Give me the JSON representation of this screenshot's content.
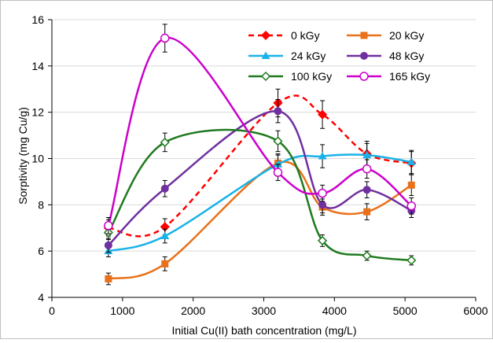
{
  "chart_data": {
    "type": "line",
    "title": "",
    "xlabel": "Initial Cu(II) bath concentration (mg/L)",
    "ylabel": "Sorptivity (mg Cu/g)",
    "xlim": [
      0,
      6000
    ],
    "ylim": [
      4,
      16
    ],
    "xticks": [
      0,
      1000,
      2000,
      3000,
      4000,
      5000,
      6000
    ],
    "yticks": [
      4,
      6,
      8,
      10,
      12,
      14,
      16
    ],
    "grid": "horizontal",
    "legend_position": "top-right",
    "x": [
      800,
      1600,
      3200,
      3830,
      4460,
      5090
    ],
    "series": [
      {
        "name": "0 kGy",
        "color": "#ff0000",
        "marker": "diamond",
        "dashed": true,
        "values": [
          7.0,
          7.05,
          12.4,
          11.9,
          10.2,
          9.8
        ],
        "errors": [
          0.35,
          0.35,
          0.6,
          0.6,
          0.55,
          0.5
        ]
      },
      {
        "name": "20 kGy",
        "color": "#e8711a",
        "marker": "square",
        "dashed": false,
        "values": [
          4.8,
          5.45,
          9.8,
          7.9,
          7.7,
          8.85
        ],
        "errors": [
          0.25,
          0.3,
          0.35,
          0.35,
          0.35,
          0.45
        ]
      },
      {
        "name": "24 kGy",
        "color": "#1ab2e8",
        "marker": "triangle",
        "dashed": false,
        "values": [
          6.0,
          6.65,
          9.75,
          10.1,
          10.15,
          9.85
        ],
        "errors": [
          0.25,
          0.3,
          0.45,
          0.5,
          0.5,
          0.5
        ]
      },
      {
        "name": "48 kGy",
        "color": "#7030a0",
        "marker": "circle",
        "dashed": false,
        "values": [
          6.25,
          8.7,
          12.05,
          8.0,
          8.65,
          7.75
        ],
        "errors": [
          0.3,
          0.35,
          0.5,
          0.35,
          0.35,
          0.3
        ]
      },
      {
        "name": "100 kGy",
        "color": "#1f7a1f",
        "marker": "open-diamond",
        "dashed": false,
        "values": [
          6.8,
          10.7,
          10.75,
          6.45,
          5.8,
          5.6
        ],
        "errors": [
          0.3,
          0.4,
          0.45,
          0.25,
          0.2,
          0.2
        ]
      },
      {
        "name": "165 kGy",
        "color": "#cc00cc",
        "marker": "open-circle",
        "dashed": false,
        "values": [
          7.1,
          15.2,
          9.4,
          8.5,
          9.55,
          7.95
        ],
        "errors": [
          0.35,
          0.6,
          0.35,
          0.35,
          0.4,
          0.35
        ]
      }
    ]
  }
}
